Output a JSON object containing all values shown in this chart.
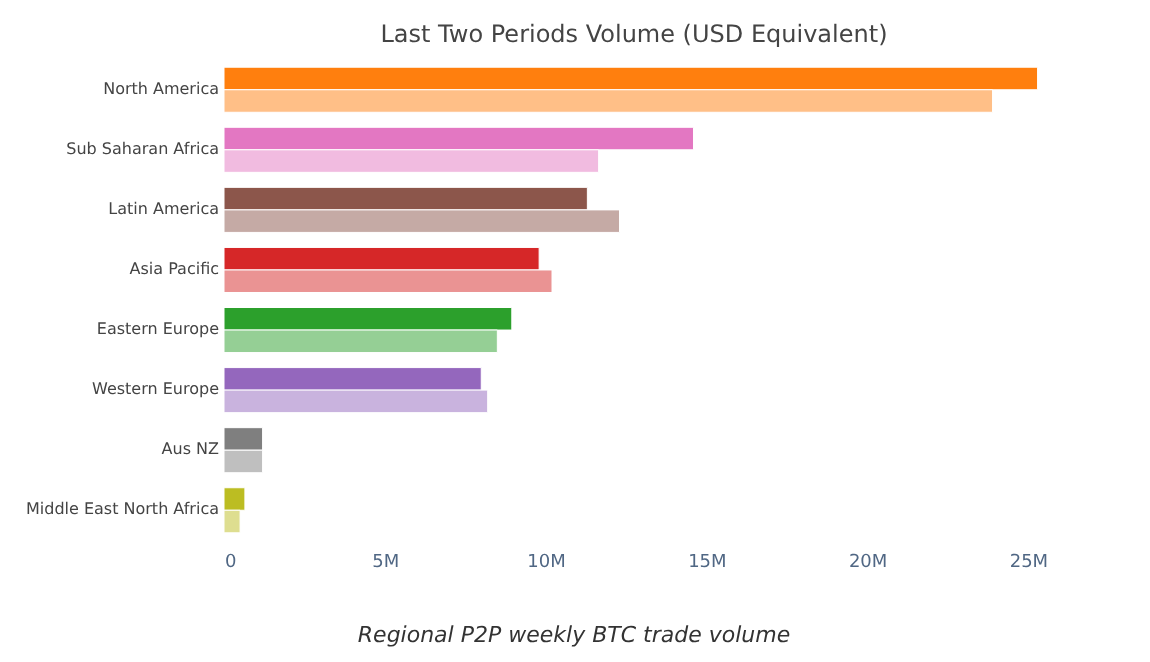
{
  "chart_data": {
    "type": "bar",
    "orientation": "horizontal",
    "title": "Last Two Periods Volume (USD Equivalent)",
    "categories": [
      "North America",
      "Sub Saharan Africa",
      "Latin America",
      "Asia Pacific",
      "Eastern Europe",
      "Western Europe",
      "Aus NZ",
      "Middle East North Africa"
    ],
    "series": [
      {
        "colors": [
          "#ff7f0e",
          "#e377c2",
          "#8c564b",
          "#d62728",
          "#2ca02c",
          "#9467bd",
          "#7f7f7f",
          "#bcbd22"
        ],
        "values": [
          25300000,
          14600000,
          11300000,
          9800000,
          8950000,
          8000000,
          1200000,
          650000
        ]
      },
      {
        "colors": [
          "#ffbf87",
          "#f1bbe0",
          "#c5aaa5",
          "#ea9393",
          "#95cf95",
          "#c9b3de",
          "#bfbfbf",
          "#dede90"
        ],
        "values": [
          23900000,
          11650000,
          12300000,
          10200000,
          8500000,
          8200000,
          1200000,
          500000
        ]
      }
    ],
    "xlim": [
      0,
      25500000
    ],
    "xticks": [
      0,
      {
        "value": 5000000,
        "label": "5M"
      },
      {
        "value": 10000000,
        "label": "10M"
      },
      {
        "value": 15000000,
        "label": "15M"
      },
      {
        "value": 20000000,
        "label": "20M"
      },
      {
        "value": 25000000,
        "label": "25M"
      }
    ],
    "annotations": [
      "Regional P2P weekly BTC trade volume"
    ]
  }
}
